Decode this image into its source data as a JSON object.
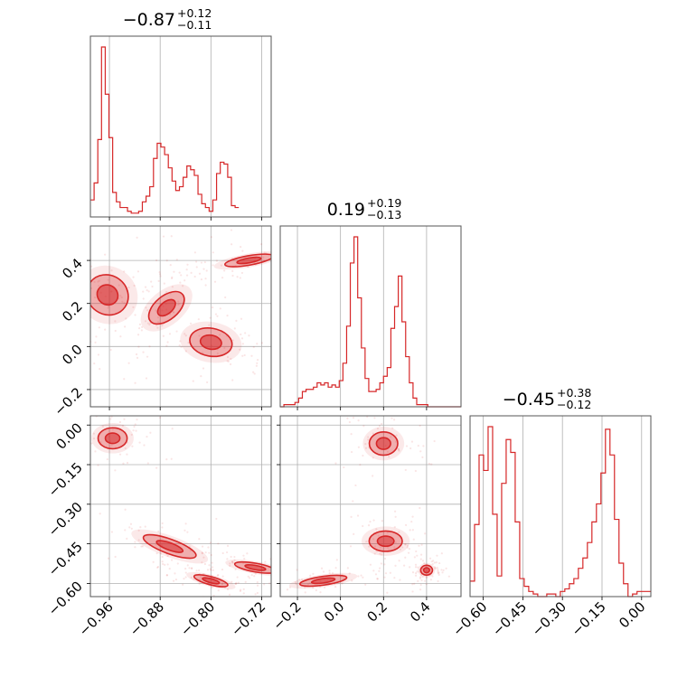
{
  "chart_data": {
    "type": "corner",
    "color": "#d62728",
    "parameters": [
      {
        "title": "−0.87",
        "sup": "+0.12",
        "sub": "−0.11",
        "range": [
          -0.99,
          -0.705
        ],
        "ticks": [
          -0.96,
          -0.88,
          -0.8,
          -0.72
        ],
        "tick_labels": [
          "−0.96",
          "−0.88",
          "−0.80",
          "−0.72"
        ]
      },
      {
        "title": "0.19",
        "sup": "+0.19",
        "sub": "−0.13",
        "range": [
          -0.28,
          0.56
        ],
        "ticks": [
          -0.2,
          0.0,
          0.2,
          0.4
        ],
        "tick_labels": [
          "−0.2",
          "0.0",
          "0.2",
          "0.4"
        ]
      },
      {
        "title": "−0.45",
        "sup": "+0.38",
        "sub": "−0.12",
        "range": [
          -0.65,
          0.035
        ],
        "ticks": [
          -0.6,
          -0.45,
          -0.3,
          -0.15,
          0.0
        ],
        "tick_labels": [
          "−0.60",
          "−0.45",
          "−0.30",
          "−0.15",
          "0.00"
        ]
      }
    ],
    "histograms": [
      {
        "param": 0,
        "bin_start": -0.99,
        "bin_width": 0.00585,
        "counts": [
          0.09,
          0.18,
          0.41,
          0.9,
          0.65,
          0.42,
          0.13,
          0.08,
          0.05,
          0.05,
          0.03,
          0.02,
          0.02,
          0.03,
          0.08,
          0.11,
          0.16,
          0.31,
          0.39,
          0.37,
          0.33,
          0.26,
          0.19,
          0.14,
          0.16,
          0.21,
          0.27,
          0.25,
          0.22,
          0.12,
          0.07,
          0.05,
          0.03,
          0.09,
          0.23,
          0.29,
          0.28,
          0.21,
          0.06,
          0.05
        ]
      },
      {
        "param": 1,
        "bin_start": -0.28,
        "bin_width": 0.01714,
        "counts": [
          0,
          0.01,
          0.01,
          0.01,
          0.02,
          0.04,
          0.07,
          0.08,
          0.08,
          0.09,
          0.11,
          0.1,
          0.11,
          0.09,
          0.1,
          0.09,
          0.12,
          0.2,
          0.37,
          0.66,
          0.78,
          0.5,
          0.27,
          0.13,
          0.07,
          0.07,
          0.08,
          0.11,
          0.14,
          0.18,
          0.36,
          0.46,
          0.6,
          0.39,
          0.23,
          0.11,
          0.04,
          0.01,
          0.01,
          0.01,
          0,
          0,
          0,
          0,
          0,
          0,
          0,
          0,
          0
        ]
      },
      {
        "param": 2,
        "bin_start": -0.65,
        "bin_width": 0.0171,
        "counts": [
          0.06,
          0.28,
          0.55,
          0.49,
          0.66,
          0.32,
          0.08,
          0.44,
          0.61,
          0.56,
          0.29,
          0.07,
          0.04,
          0.02,
          0.01,
          0.0,
          0.0,
          0.01,
          0.01,
          0.0,
          0.02,
          0.03,
          0.05,
          0.07,
          0.11,
          0.15,
          0.21,
          0.29,
          0.36,
          0.48,
          0.65,
          0.55,
          0.3,
          0.13,
          0.05,
          0.0,
          0.01,
          0.02,
          0.02,
          0.02
        ]
      }
    ],
    "contours": [
      {
        "x": 0,
        "y": 1,
        "modes": [
          {
            "cx": -0.963,
            "cy": 0.24,
            "sx": 0.028,
            "sy": 0.09,
            "angle": 55
          },
          {
            "cx": -0.87,
            "cy": 0.18,
            "sx": 0.03,
            "sy": 0.05,
            "angle": 40
          },
          {
            "cx": -0.8,
            "cy": 0.02,
            "sx": 0.02,
            "sy": 0.09,
            "angle": 80
          },
          {
            "cx": -0.74,
            "cy": 0.4,
            "sx": 0.035,
            "sy": 0.02,
            "angle": 10
          }
        ]
      },
      {
        "x": 0,
        "y": 2,
        "modes": [
          {
            "cx": -0.955,
            "cy": -0.05,
            "sx": 0.015,
            "sy": 0.05,
            "angle": 90
          },
          {
            "cx": -0.865,
            "cy": -0.46,
            "sx": 0.04,
            "sy": 0.025,
            "angle": -20
          },
          {
            "cx": -0.8,
            "cy": -0.59,
            "sx": 0.025,
            "sy": 0.014,
            "angle": -15
          },
          {
            "cx": -0.73,
            "cy": -0.54,
            "sx": 0.03,
            "sy": 0.015,
            "angle": -10
          }
        ]
      },
      {
        "x": 1,
        "y": 2,
        "modes": [
          {
            "cx": 0.2,
            "cy": -0.07,
            "sx": 0.06,
            "sy": 0.04,
            "angle": 0
          },
          {
            "cx": 0.21,
            "cy": -0.44,
            "sx": 0.07,
            "sy": 0.035,
            "angle": 0
          },
          {
            "cx": -0.08,
            "cy": -0.59,
            "sx": 0.1,
            "sy": 0.015,
            "angle": 8
          },
          {
            "cx": 0.4,
            "cy": -0.55,
            "sx": 0.025,
            "sy": 0.017,
            "angle": 0
          }
        ]
      }
    ]
  }
}
